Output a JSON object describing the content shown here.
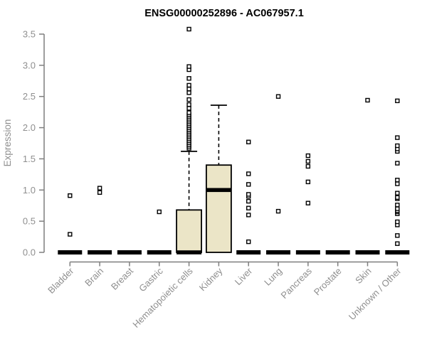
{
  "chart_data": {
    "type": "boxplot",
    "title": "ENSG00000252896 - AC067957.1",
    "ylabel": "Expression",
    "xlabel": "",
    "ylim": [
      0,
      3.5
    ],
    "yticks": [
      0.0,
      0.5,
      1.0,
      1.5,
      2.0,
      2.5,
      3.0,
      3.5
    ],
    "ytick_labels": [
      "0.0",
      "0.5",
      "1.0",
      "1.5",
      "2.0",
      "2.5",
      "3.0",
      "3.5"
    ],
    "categories": [
      "Bladder",
      "Brain",
      "Breast",
      "Gastric",
      "Hematopoietic cells",
      "Kidney",
      "Liver",
      "Lung",
      "Pancreas",
      "Prostate",
      "Skin",
      "Unknown / Other"
    ],
    "grid": false,
    "legend": null,
    "boxes": [
      {
        "category": "Bladder",
        "q1": 0,
        "median": 0,
        "q3": 0,
        "whisker_low": 0,
        "whisker_high": 0,
        "outliers": [
          0.29,
          0.91
        ]
      },
      {
        "category": "Brain",
        "q1": 0,
        "median": 0,
        "q3": 0,
        "whisker_low": 0,
        "whisker_high": 0,
        "outliers": [
          0.96,
          1.03
        ]
      },
      {
        "category": "Breast",
        "q1": 0,
        "median": 0,
        "q3": 0,
        "whisker_low": 0,
        "whisker_high": 0,
        "outliers": []
      },
      {
        "category": "Gastric",
        "q1": 0,
        "median": 0,
        "q3": 0,
        "whisker_low": 0,
        "whisker_high": 0,
        "outliers": [
          0.65
        ]
      },
      {
        "category": "Hematopoietic cells",
        "q1": 0,
        "median": 0,
        "q3": 0.68,
        "whisker_low": 0,
        "whisker_high": 1.62,
        "outliers": [
          1.67,
          1.7,
          1.73,
          1.76,
          1.79,
          1.82,
          1.85,
          1.88,
          1.91,
          1.94,
          1.97,
          2.0,
          2.03,
          2.06,
          2.09,
          2.12,
          2.15,
          2.18,
          2.21,
          2.24,
          2.31,
          2.37,
          2.45,
          2.56,
          2.62,
          2.68,
          2.79,
          2.93,
          2.98,
          3.58
        ]
      },
      {
        "category": "Kidney",
        "q1": 0,
        "median": 1.0,
        "q3": 1.4,
        "whisker_low": 0,
        "whisker_high": 2.36,
        "outliers": []
      },
      {
        "category": "Liver",
        "q1": 0,
        "median": 0,
        "q3": 0,
        "whisker_low": 0,
        "whisker_high": 0,
        "outliers": [
          0.17,
          0.6,
          0.71,
          0.82,
          0.9,
          0.93,
          1.09,
          1.26,
          1.77
        ]
      },
      {
        "category": "Lung",
        "q1": 0,
        "median": 0,
        "q3": 0,
        "whisker_low": 0,
        "whisker_high": 0,
        "outliers": [
          0.66,
          2.5
        ]
      },
      {
        "category": "Pancreas",
        "q1": 0,
        "median": 0,
        "q3": 0,
        "whisker_low": 0,
        "whisker_high": 0,
        "outliers": [
          0.79,
          1.13,
          1.38,
          1.46,
          1.55
        ]
      },
      {
        "category": "Prostate",
        "q1": 0,
        "median": 0,
        "q3": 0,
        "whisker_low": 0,
        "whisker_high": 0,
        "outliers": []
      },
      {
        "category": "Skin",
        "q1": 0,
        "median": 0,
        "q3": 0,
        "whisker_low": 0,
        "whisker_high": 0,
        "outliers": [
          2.44
        ]
      },
      {
        "category": "Unknown / Other",
        "q1": 0,
        "median": 0,
        "q3": 0,
        "whisker_low": 0,
        "whisker_high": 0,
        "outliers": [
          0.14,
          0.27,
          0.44,
          0.49,
          0.62,
          0.65,
          0.67,
          0.7,
          0.76,
          0.86,
          0.88,
          0.95,
          1.1,
          1.16,
          1.43,
          1.62,
          1.66,
          1.71,
          1.84,
          2.43
        ]
      }
    ],
    "colors": {
      "background": "#ffffff",
      "box_fill": "#ebe5c7",
      "box_border": "#000000",
      "median": "#000000",
      "whisker": "#000000",
      "outlier_stroke": "#000000",
      "outlier_fill": "#ffffff",
      "axis": "#7f7f7f",
      "tick_label": "#8f8f8f",
      "title": "#000000"
    }
  }
}
